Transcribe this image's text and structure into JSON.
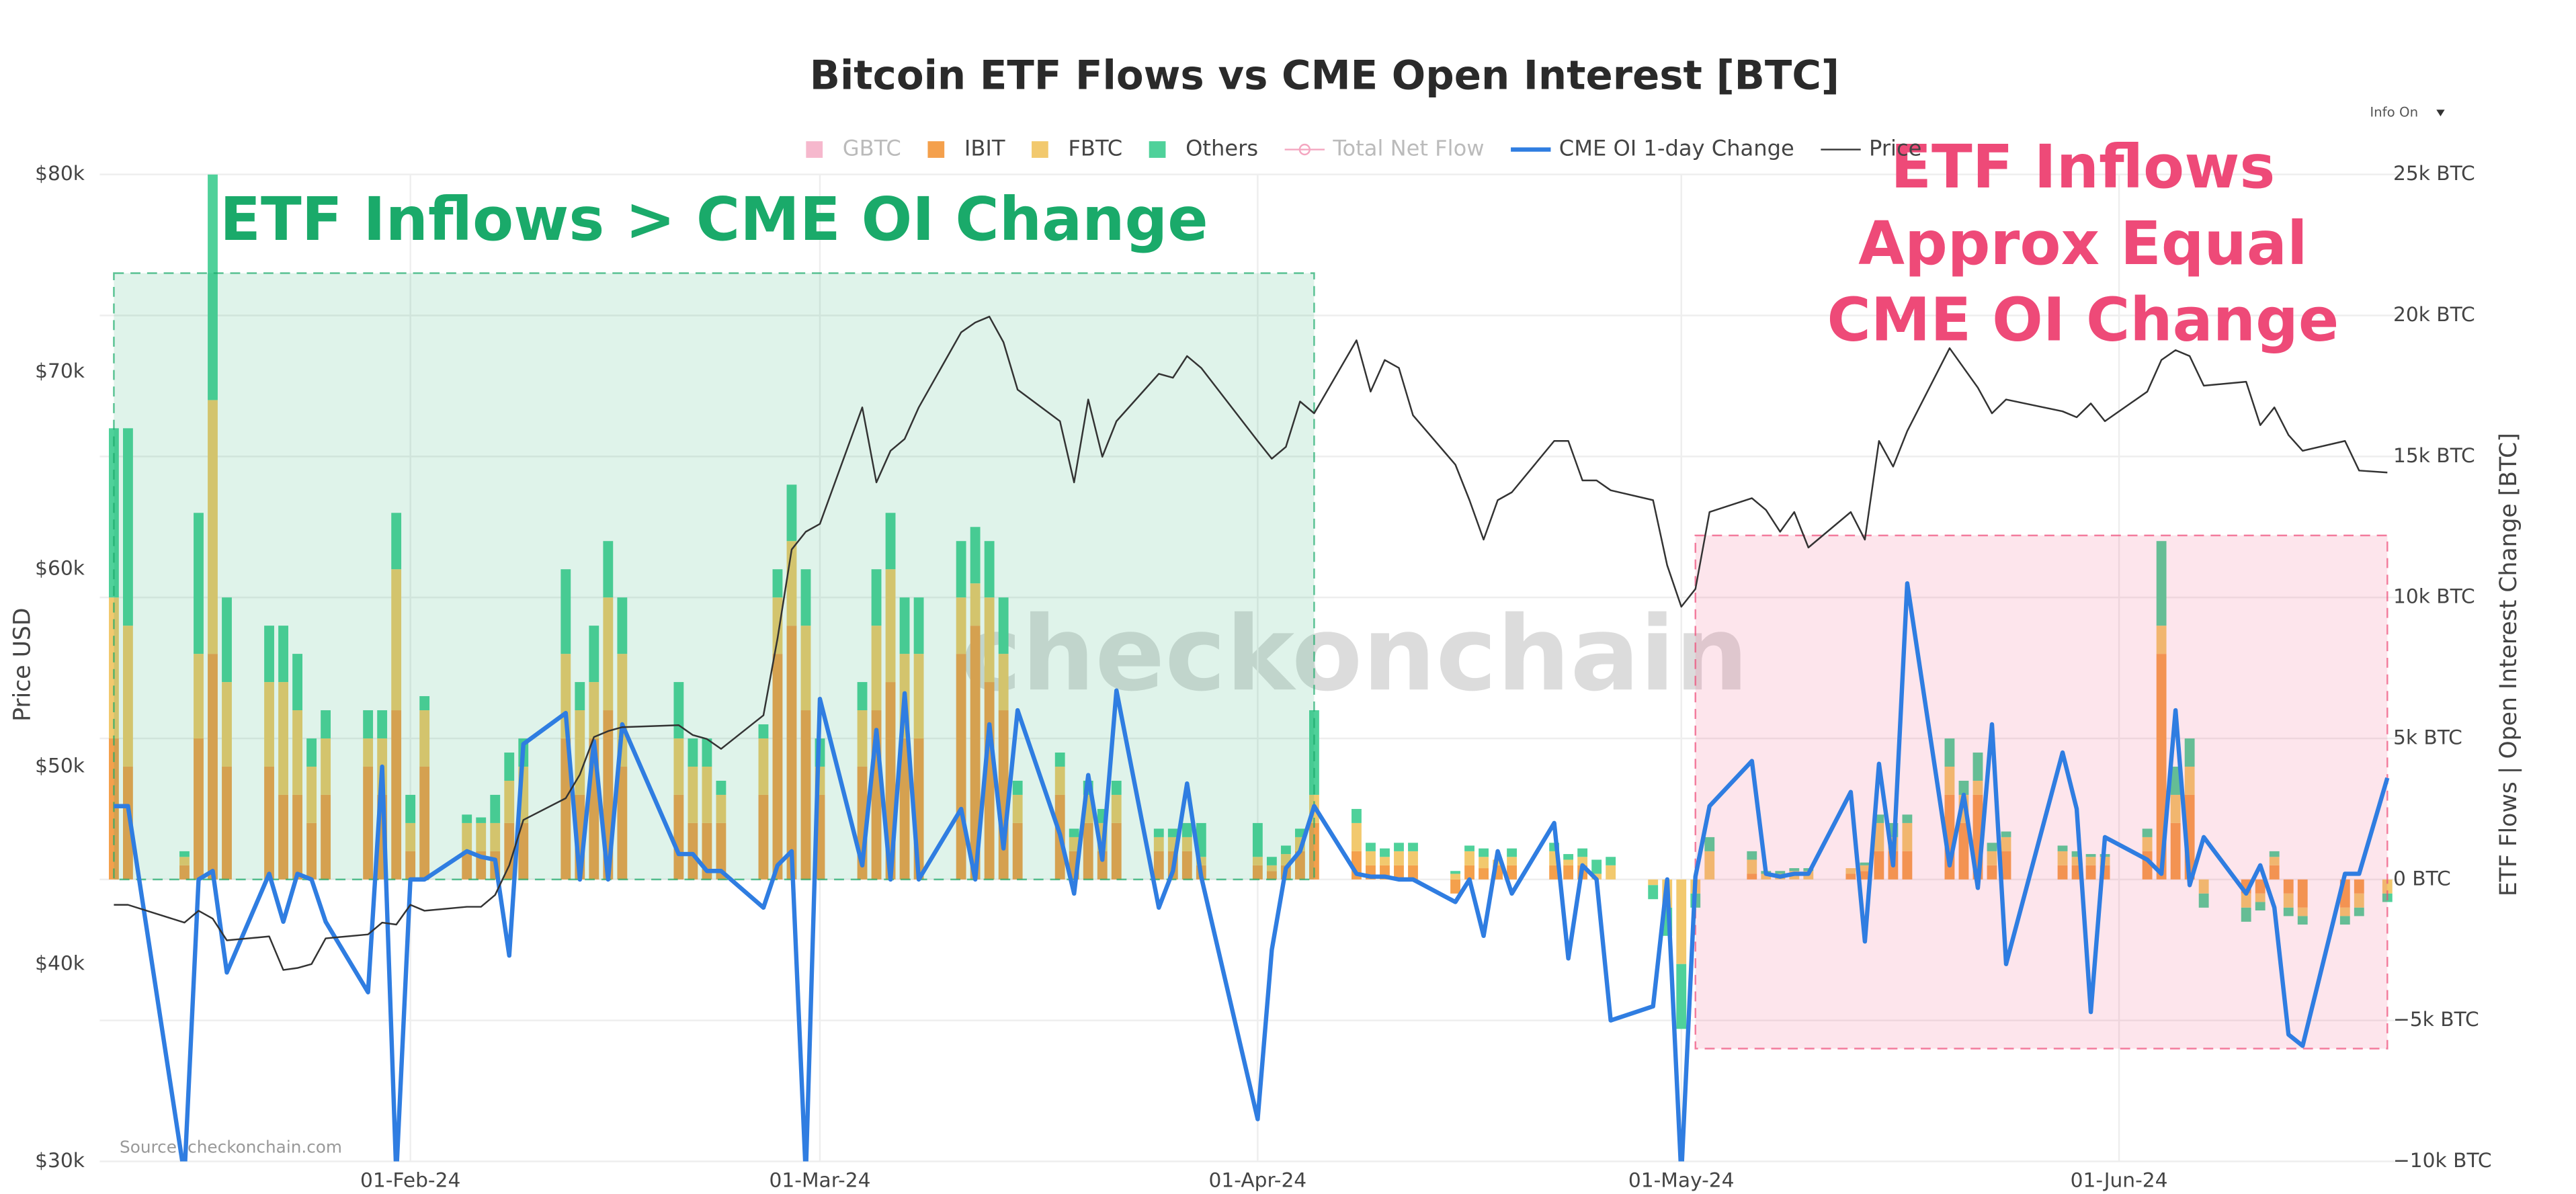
{
  "chart_data": {
    "type": "bar",
    "title": "Bitcoin ETF Flows vs CME Open Interest [BTC]",
    "ylabel": "Price USD",
    "y2label": "ETF Flows | Open Interest Change [BTC]",
    "source": "Source: checkonchain.com",
    "watermark": "checkonchain",
    "menu": "Info On",
    "grid": true,
    "stacked": true,
    "x": [
      "2024-01-11",
      "2024-01-12",
      "2024-01-16",
      "2024-01-17",
      "2024-01-18",
      "2024-01-19",
      "2024-01-22",
      "2024-01-23",
      "2024-01-24",
      "2024-01-25",
      "2024-01-26",
      "2024-01-29",
      "2024-01-30",
      "2024-01-31",
      "2024-02-01",
      "2024-02-02",
      "2024-02-05",
      "2024-02-06",
      "2024-02-07",
      "2024-02-08",
      "2024-02-09",
      "2024-02-12",
      "2024-02-13",
      "2024-02-14",
      "2024-02-15",
      "2024-02-16",
      "2024-02-20",
      "2024-02-21",
      "2024-02-22",
      "2024-02-23",
      "2024-02-26",
      "2024-02-27",
      "2024-02-28",
      "2024-02-29",
      "2024-03-01",
      "2024-03-04",
      "2024-03-05",
      "2024-03-06",
      "2024-03-07",
      "2024-03-08",
      "2024-03-11",
      "2024-03-12",
      "2024-03-13",
      "2024-03-14",
      "2024-03-15",
      "2024-03-18",
      "2024-03-19",
      "2024-03-20",
      "2024-03-21",
      "2024-03-22",
      "2024-03-25",
      "2024-03-26",
      "2024-03-27",
      "2024-03-28",
      "2024-04-01",
      "2024-04-02",
      "2024-04-03",
      "2024-04-04",
      "2024-04-05",
      "2024-04-08",
      "2024-04-09",
      "2024-04-10",
      "2024-04-11",
      "2024-04-12",
      "2024-04-15",
      "2024-04-16",
      "2024-04-17",
      "2024-04-18",
      "2024-04-19",
      "2024-04-22",
      "2024-04-23",
      "2024-04-24",
      "2024-04-25",
      "2024-04-26",
      "2024-04-29",
      "2024-04-30",
      "2024-05-01",
      "2024-05-02",
      "2024-05-03",
      "2024-05-06",
      "2024-05-07",
      "2024-05-08",
      "2024-05-09",
      "2024-05-10",
      "2024-05-13",
      "2024-05-14",
      "2024-05-15",
      "2024-05-16",
      "2024-05-17",
      "2024-05-20",
      "2024-05-21",
      "2024-05-22",
      "2024-05-23",
      "2024-05-24",
      "2024-05-28",
      "2024-05-29",
      "2024-05-30",
      "2024-05-31",
      "2024-06-03",
      "2024-06-04",
      "2024-06-05",
      "2024-06-06",
      "2024-06-07",
      "2024-06-10",
      "2024-06-11",
      "2024-06-12",
      "2024-06-13",
      "2024-06-14",
      "2024-06-17",
      "2024-06-18",
      "2024-06-20"
    ],
    "xlim": [
      "2024-01-10",
      "2024-06-21"
    ],
    "xticks": [
      {
        "value": "2024-02-01",
        "label": "01-Feb-24"
      },
      {
        "value": "2024-03-01",
        "label": "01-Mar-24"
      },
      {
        "value": "2024-04-01",
        "label": "01-Apr-24"
      },
      {
        "value": "2024-05-01",
        "label": "01-May-24"
      },
      {
        "value": "2024-06-01",
        "label": "01-Jun-24"
      }
    ],
    "ylim": [
      30000,
      80000
    ],
    "yticks": [
      {
        "value": 30000,
        "label": "$30k"
      },
      {
        "value": 40000,
        "label": "$40k"
      },
      {
        "value": 50000,
        "label": "$50k"
      },
      {
        "value": 60000,
        "label": "$60k"
      },
      {
        "value": 70000,
        "label": "$70k"
      },
      {
        "value": 80000,
        "label": "$80k"
      }
    ],
    "y2lim": [
      -10000,
      25000
    ],
    "y2ticks": [
      {
        "value": -10000,
        "label": "−10k BTC"
      },
      {
        "value": -5000,
        "label": "−5k BTC"
      },
      {
        "value": 0,
        "label": "0 BTC"
      },
      {
        "value": 5000,
        "label": "5k BTC"
      },
      {
        "value": 10000,
        "label": "10k BTC"
      },
      {
        "value": 15000,
        "label": "15k BTC"
      },
      {
        "value": 20000,
        "label": "20k BTC"
      },
      {
        "value": 25000,
        "label": "25k BTC"
      }
    ],
    "series": [
      {
        "name": "GBTC",
        "kind": "bar",
        "color": "#f4a6c0",
        "visible": false
      },
      {
        "name": "IBIT",
        "kind": "bar",
        "axis": "y2",
        "color": "#f4a04c",
        "values": [
          5000,
          4000,
          500,
          5000,
          8000,
          4000,
          4000,
          3000,
          3000,
          2000,
          3000,
          4000,
          3000,
          6000,
          1000,
          4000,
          1000,
          1000,
          1000,
          2000,
          2000,
          5000,
          3000,
          5000,
          6000,
          4000,
          3000,
          2000,
          2000,
          2000,
          3000,
          8000,
          9000,
          6000,
          3000,
          4000,
          6000,
          7000,
          5000,
          5000,
          8000,
          9000,
          7000,
          6000,
          2000,
          3000,
          1000,
          2000,
          1000,
          2000,
          1000,
          1000,
          1000,
          500,
          500,
          300,
          500,
          1000,
          2000,
          1000,
          500,
          500,
          500,
          500,
          -500,
          500,
          400,
          500,
          500,
          500,
          500,
          500,
          0,
          0,
          0,
          0,
          0,
          0,
          0,
          200,
          0,
          0,
          0,
          0,
          200,
          300,
          1000,
          1000,
          1000,
          3000,
          2000,
          3000,
          500,
          1000,
          500,
          500,
          500,
          500,
          1000,
          8000,
          2000,
          3000,
          0,
          -500,
          -500,
          500,
          -500,
          -1000,
          -1000,
          -500,
          0
        ]
      },
      {
        "name": "FBTC",
        "kind": "bar",
        "axis": "y2",
        "color": "#f2c96e",
        "values": [
          5000,
          5000,
          300,
          3000,
          9000,
          3000,
          3000,
          4000,
          3000,
          2000,
          2000,
          1000,
          2000,
          5000,
          1000,
          2000,
          1000,
          1000,
          1000,
          1500,
          2000,
          3000,
          3000,
          2000,
          4000,
          4000,
          2000,
          2000,
          2000,
          1000,
          2000,
          2000,
          3000,
          3000,
          1000,
          2000,
          3000,
          4000,
          3000,
          3000,
          2000,
          1500,
          3000,
          2000,
          1000,
          1000,
          500,
          1000,
          1000,
          1000,
          500,
          500,
          500,
          300,
          300,
          200,
          400,
          500,
          1000,
          1000,
          500,
          300,
          500,
          500,
          200,
          500,
          400,
          200,
          300,
          500,
          200,
          300,
          200,
          500,
          -200,
          -1000,
          -3000,
          -500,
          1000,
          500,
          200,
          200,
          300,
          300,
          200,
          200,
          1000,
          500,
          1000,
          1000,
          1000,
          500,
          500,
          500,
          500,
          300,
          300,
          300,
          500,
          1000,
          1000,
          1000,
          -500,
          -500,
          -300,
          300,
          -500,
          -300,
          -300,
          -500,
          -500
        ]
      },
      {
        "name": "Others",
        "kind": "bar",
        "axis": "y2",
        "color": "#4fd19a",
        "values": [
          6000,
          7000,
          200,
          5000,
          8000,
          3000,
          2000,
          2000,
          2000,
          1000,
          1000,
          1000,
          1000,
          2000,
          1000,
          500,
          300,
          200,
          1000,
          1000,
          1000,
          3000,
          1000,
          2000,
          2000,
          2000,
          2000,
          1000,
          1000,
          500,
          500,
          1000,
          2000,
          2000,
          1000,
          1000,
          2000,
          2000,
          2000,
          2000,
          2000,
          2000,
          2000,
          2000,
          500,
          500,
          300,
          500,
          500,
          500,
          300,
          300,
          500,
          1200,
          1200,
          300,
          300,
          300,
          3000,
          500,
          300,
          300,
          300,
          300,
          100,
          200,
          300,
          0,
          300,
          300,
          200,
          300,
          500,
          300,
          -500,
          -1000,
          -2300,
          -500,
          500,
          300,
          100,
          100,
          100,
          100,
          0,
          100,
          300,
          500,
          300,
          1000,
          500,
          1000,
          300,
          200,
          200,
          200,
          100,
          100,
          300,
          3000,
          1000,
          1000,
          -500,
          -500,
          -300,
          200,
          -300,
          -300,
          -300,
          -300,
          -300
        ]
      },
      {
        "name": "Total Net Flow",
        "kind": "line",
        "color": "#f4a6c0",
        "visible": false
      },
      {
        "name": "CME OI 1-day Change",
        "kind": "line",
        "axis": "y2",
        "color": "#2f7de1",
        "values": [
          2600,
          2600,
          -10500,
          0,
          300,
          -3300,
          200,
          -1500,
          200,
          0,
          -1500,
          -4000,
          4000,
          -10500,
          0,
          0,
          1000,
          800,
          700,
          -2700,
          4800,
          5900,
          0,
          4900,
          0,
          5500,
          900,
          900,
          300,
          300,
          -1000,
          500,
          1000,
          -10500,
          6400,
          500,
          5300,
          0,
          6600,
          0,
          2500,
          0,
          5500,
          1100,
          6000,
          1600,
          -500,
          3700,
          700,
          6700,
          -1000,
          300,
          3400,
          100,
          -8500,
          -2500,
          400,
          1000,
          2600,
          200,
          100,
          100,
          0,
          0,
          -800,
          0,
          -2000,
          1000,
          -500,
          2000,
          -2800,
          500,
          0,
          -5000,
          -4500,
          0,
          -10500,
          100,
          2600,
          4200,
          200,
          100,
          200,
          200,
          3100,
          -2200,
          4100,
          500,
          10500,
          500,
          3000,
          -300,
          5500,
          -3000,
          4500,
          2500,
          -4700,
          1500,
          700,
          200,
          6000,
          -200,
          1500,
          -500,
          500,
          -1000,
          -5500,
          -5900,
          200,
          200,
          3600
        ]
      },
      {
        "name": "Price",
        "kind": "line",
        "color": "#333333",
        "values": [
          43000,
          43000,
          42100,
          42700,
          42300,
          41200,
          41400,
          39700,
          39800,
          40000,
          41300,
          41500,
          42100,
          42000,
          43000,
          42700,
          42900,
          42900,
          43500,
          45000,
          47300,
          48400,
          49600,
          51500,
          51800,
          52000,
          52100,
          51600,
          51400,
          50900,
          52600,
          56500,
          61000,
          61900,
          62300,
          68200,
          64400,
          66000,
          66600,
          68200,
          72000,
          72500,
          72800,
          71500,
          69100,
          67500,
          64400,
          68600,
          65700,
          67500,
          69900,
          69700,
          70800,
          70200,
          66500,
          65600,
          66200,
          68500,
          67900,
          71600,
          69000,
          70600,
          70200,
          67800,
          65300,
          63500,
          61500,
          63500,
          63900,
          66500,
          66500,
          64500,
          64500,
          64000,
          63500,
          60200,
          58100,
          59000,
          62900,
          63600,
          63000,
          61900,
          62900,
          61100,
          62900,
          61500,
          66500,
          65200,
          67000,
          71200,
          70200,
          69200,
          67900,
          68600,
          68000,
          67700,
          68400,
          67500,
          69000,
          70600,
          71100,
          70800,
          69300,
          69500,
          67300,
          68200,
          66800,
          66000,
          66500,
          65000,
          64900
        ]
      }
    ],
    "regions": [
      {
        "label": [
          "ETF Inflows > CME OI Change"
        ],
        "color": "#1aaa6a",
        "x0": "2024-01-11",
        "x1": "2024-04-05",
        "y0": 0,
        "y1": 21500
      },
      {
        "label": [
          "ETF Inflows",
          "Approx Equal",
          "CME OI Change"
        ],
        "color": "#ee4a78",
        "x0": "2024-05-02",
        "x1": "2024-06-20",
        "y0": -6000,
        "y1": 12200
      }
    ]
  }
}
